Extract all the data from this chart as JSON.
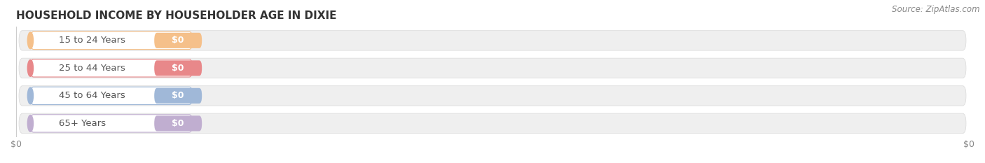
{
  "title": "HOUSEHOLD INCOME BY HOUSEHOLDER AGE IN DIXIE",
  "source": "Source: ZipAtlas.com",
  "categories": [
    "15 to 24 Years",
    "25 to 44 Years",
    "45 to 64 Years",
    "65+ Years"
  ],
  "values": [
    0,
    0,
    0,
    0
  ],
  "bar_colors": [
    "#f5c08a",
    "#e8888a",
    "#a0b8d8",
    "#c0aed0"
  ],
  "bar_bg_color": "#efefef",
  "background_color": "#ffffff",
  "title_fontsize": 11,
  "label_fontsize": 9.5,
  "tick_fontsize": 9,
  "source_fontsize": 8.5,
  "value_label_color": "#ffffff"
}
